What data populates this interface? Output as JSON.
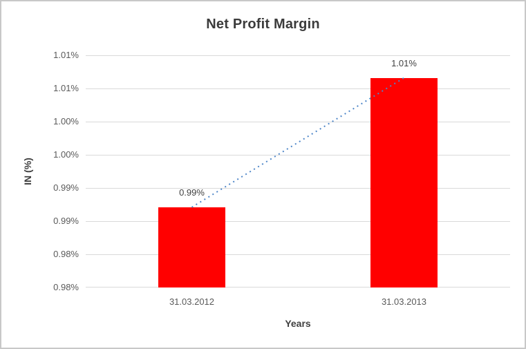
{
  "frame": {
    "background": "#ffffff",
    "border_color": "#c8c8c8"
  },
  "chart_data": {
    "type": "bar",
    "title": "Net Profit Margin",
    "xlabel": "Years",
    "ylabel": "IN (%)",
    "categories": [
      "31.03.2012",
      "31.03.2013"
    ],
    "series": [
      {
        "name": "Net Profit Margin",
        "color": "#ff0000",
        "values": [
          0.9871,
          1.0066
        ],
        "data_labels": [
          "0.99%",
          "1.01%"
        ]
      }
    ],
    "trendline": {
      "style": "dotted",
      "color": "#4e86c8",
      "connects": "bar tops"
    },
    "y_axis": {
      "min": 0.975,
      "max": 1.01,
      "step": 0.005,
      "ticks": [
        {
          "value": 0.975,
          "label": "0.98%"
        },
        {
          "value": 0.98,
          "label": "0.98%"
        },
        {
          "value": 0.985,
          "label": "0.99%"
        },
        {
          "value": 0.99,
          "label": "0.99%"
        },
        {
          "value": 0.995,
          "label": "1.00%"
        },
        {
          "value": 1.0,
          "label": "1.00%"
        },
        {
          "value": 1.005,
          "label": "1.01%"
        },
        {
          "value": 1.01,
          "label": "1.01%"
        }
      ]
    },
    "gridlines": {
      "horizontal": true,
      "color": "#d9d9d9"
    },
    "legend": "none",
    "colors": {
      "title": "#3b3b3b",
      "axis_title": "#404040",
      "tick_label": "#595959",
      "data_label": "#404040"
    }
  }
}
